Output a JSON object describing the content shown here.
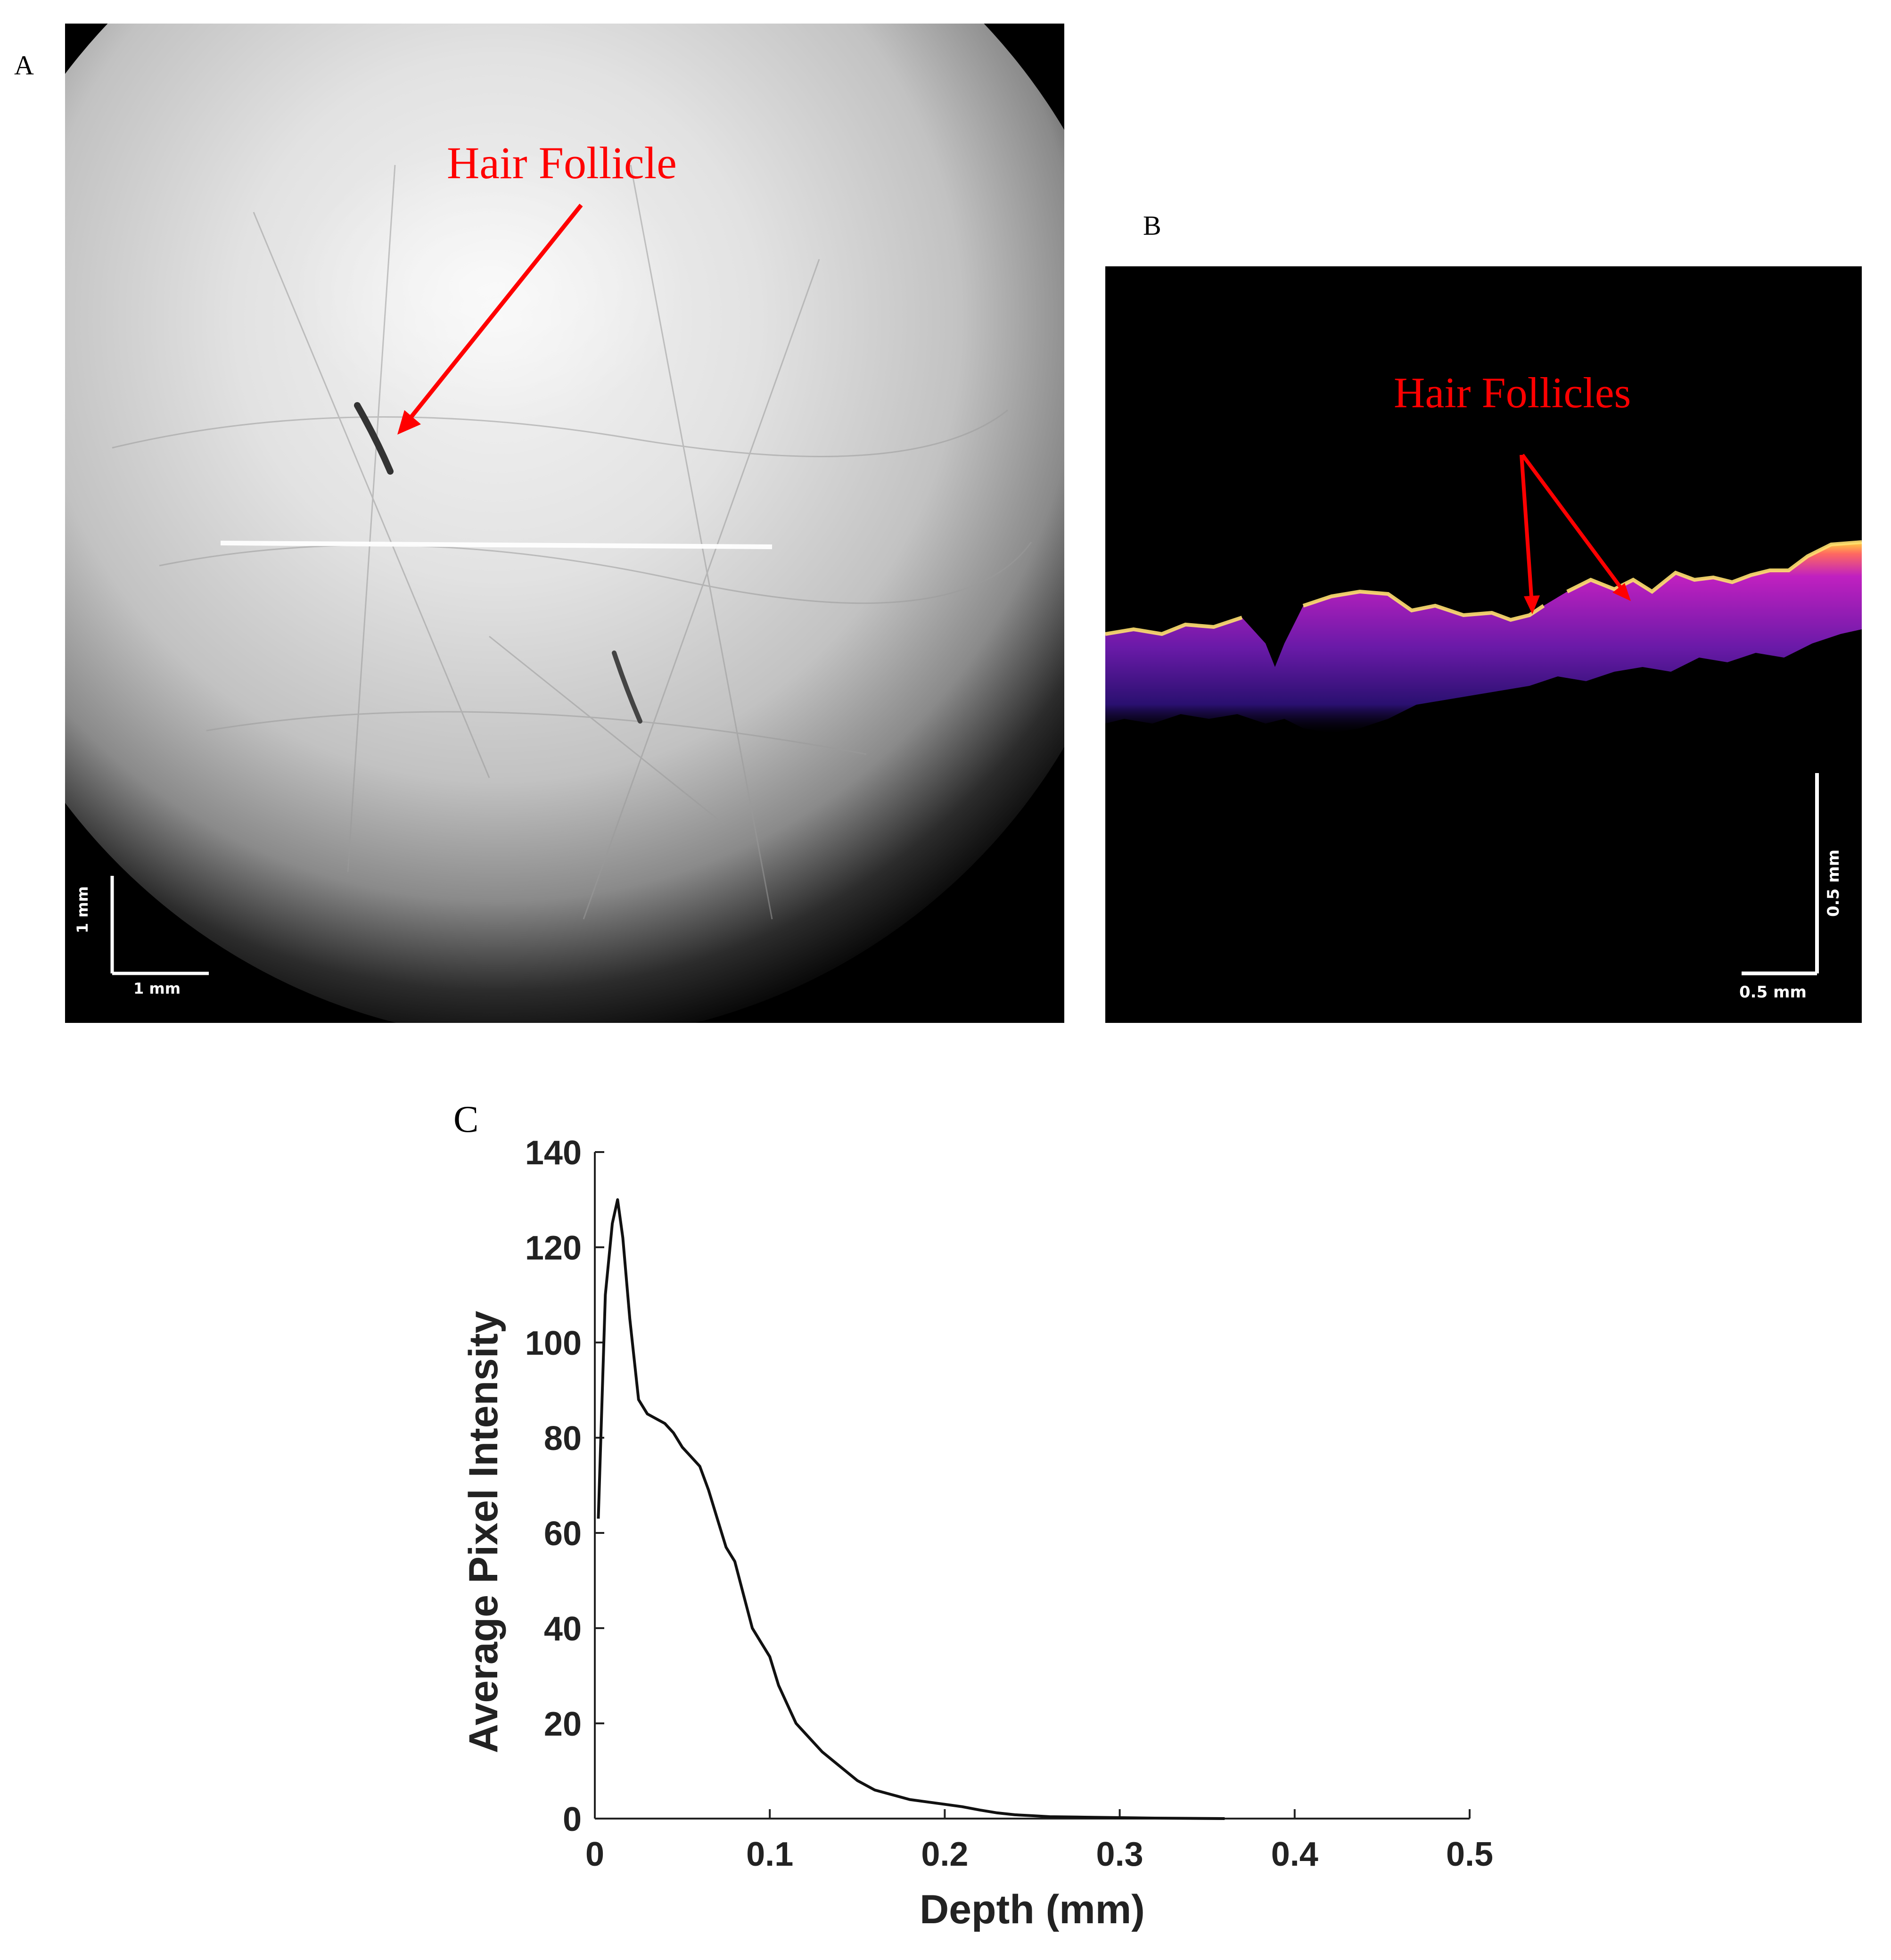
{
  "figure": {
    "panel_a": {
      "label": "A",
      "annotation": "Hair Follicle",
      "scale_bar_x": "1 mm",
      "scale_bar_y": "1 mm"
    },
    "panel_b": {
      "label": "B",
      "annotation": "Hair Follicles",
      "scale_bar_x": "0.5 mm",
      "scale_bar_y": "0.5 mm"
    },
    "panel_c": {
      "label": "C"
    }
  },
  "colors": {
    "annotation": "#ff0000",
    "oct_low": "#3a1a8a",
    "oct_mid": "#c020c0",
    "oct_high": "#ffd040"
  },
  "chart_data": {
    "type": "line",
    "title": "",
    "xlabel": "Depth (mm)",
    "ylabel": "Average Pixel Intensity",
    "xlim": [
      0,
      0.5
    ],
    "ylim": [
      0,
      140
    ],
    "xticks": [
      "0",
      "0.1",
      "0.2",
      "0.3",
      "0.4",
      "0.5"
    ],
    "yticks": [
      "0",
      "20",
      "40",
      "60",
      "80",
      "100",
      "120",
      "140"
    ],
    "grid": false,
    "series": [
      {
        "x": [
          0.002,
          0.006,
          0.01,
          0.013,
          0.016,
          0.02,
          0.025,
          0.03,
          0.035,
          0.04,
          0.045,
          0.05,
          0.055,
          0.06,
          0.065,
          0.07,
          0.075,
          0.08,
          0.085,
          0.09,
          0.095,
          0.1,
          0.105,
          0.11,
          0.115,
          0.12,
          0.13,
          0.14,
          0.15,
          0.16,
          0.17,
          0.18,
          0.19,
          0.2,
          0.21,
          0.22,
          0.23,
          0.24,
          0.25,
          0.26,
          0.28,
          0.3,
          0.32,
          0.34,
          0.36
        ],
        "y": [
          63,
          110,
          125,
          130,
          122,
          105,
          88,
          85,
          84,
          83,
          81,
          78,
          76,
          74,
          69,
          63,
          57,
          54,
          47,
          40,
          37,
          34,
          28,
          24,
          20,
          18,
          14,
          11,
          8,
          6,
          5,
          4,
          3.5,
          3,
          2.5,
          1.8,
          1.2,
          0.8,
          0.6,
          0.4,
          0.3,
          0.2,
          0.1,
          0.05,
          0.0
        ]
      }
    ]
  }
}
